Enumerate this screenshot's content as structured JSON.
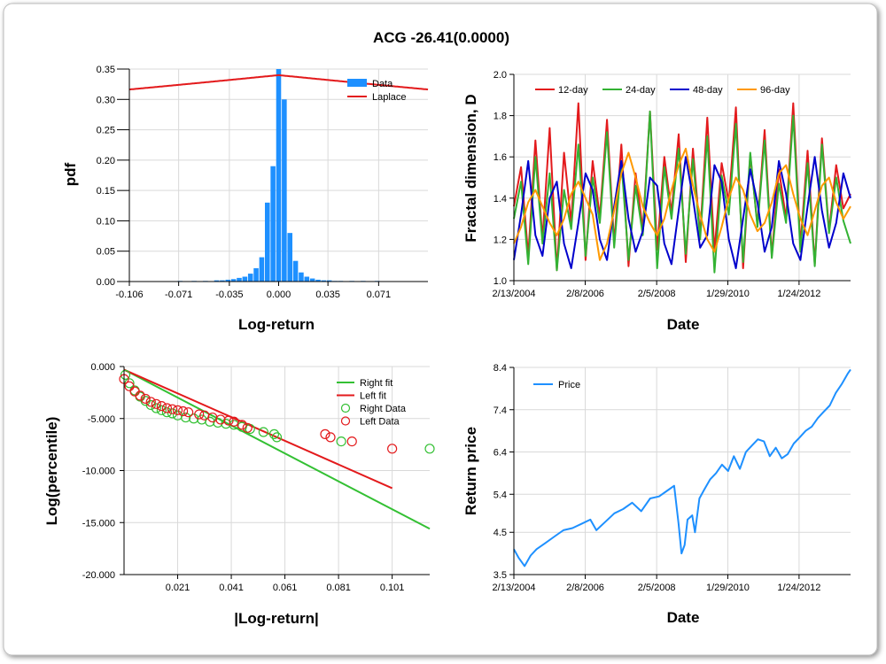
{
  "title": "ACG -26.41(0.0000)",
  "chart_data": [
    {
      "type": "bar",
      "subtype": "histogram with fitted curve",
      "xlabel": "Log-return",
      "ylabel": "pdf",
      "xlim": [
        -0.106,
        0.106
      ],
      "ylim": [
        0,
        0.35
      ],
      "x_ticks": [
        "-0.106",
        "-0.071",
        "-0.035",
        "0.000",
        "0.035",
        "0.071"
      ],
      "x_tick_values": [
        -0.106,
        -0.071,
        -0.035,
        0.0,
        0.035,
        0.071
      ],
      "y_ticks": [
        "0.00",
        "0.05",
        "0.10",
        "0.15",
        "0.20",
        "0.25",
        "0.30",
        "0.35"
      ],
      "y_tick_values": [
        0,
        0.05,
        0.1,
        0.15,
        0.2,
        0.25,
        0.3,
        0.35
      ],
      "legend": [
        "Data",
        "Laplace"
      ],
      "legend_position": "top-right",
      "colors": {
        "Data": "#1e90ff",
        "Laplace": "#e31a1c"
      },
      "bins": {
        "centers": [
          -0.07,
          -0.06,
          -0.052,
          -0.044,
          -0.04,
          -0.036,
          -0.032,
          -0.028,
          -0.024,
          -0.02,
          -0.016,
          -0.012,
          -0.008,
          -0.004,
          0.0,
          0.004,
          0.008,
          0.012,
          0.016,
          0.02,
          0.024,
          0.028,
          0.032,
          0.036,
          0.04,
          0.044,
          0.052,
          0.06,
          0.07
        ],
        "values": [
          0.001,
          0.001,
          0.001,
          0.002,
          0.002,
          0.003,
          0.004,
          0.006,
          0.008,
          0.013,
          0.022,
          0.04,
          0.13,
          0.19,
          0.35,
          0.3,
          0.08,
          0.034,
          0.015,
          0.008,
          0.005,
          0.003,
          0.002,
          0.002,
          0.001,
          0.001,
          0.001,
          0.001,
          0.001
        ],
        "width": 0.004
      },
      "laplace": {
        "location": 0.0,
        "peak": 0.34
      }
    },
    {
      "type": "line",
      "xlabel": "Date",
      "ylabel": "Fractal dimension, D",
      "ylim": [
        1.0,
        2.0
      ],
      "x_ticks": [
        "2/13/2004",
        "2/8/2006",
        "2/5/2008",
        "1/29/2010",
        "1/24/2012"
      ],
      "x_tick_values": [
        "2004-02-13",
        "2006-02-08",
        "2008-02-05",
        "2010-01-29",
        "2012-01-24"
      ],
      "x_range": [
        "2004-02-13",
        "2013-07-01"
      ],
      "y_ticks": [
        "1.0",
        "1.2",
        "1.4",
        "1.6",
        "1.8",
        "2.0"
      ],
      "y_tick_values": [
        1.0,
        1.2,
        1.4,
        1.6,
        1.8,
        2.0
      ],
      "legend_position": "top-left",
      "series": [
        {
          "name": "12-day",
          "color": "#e31a1c",
          "values": [
            1.36,
            1.55,
            1.12,
            1.68,
            1.2,
            1.74,
            1.05,
            1.62,
            1.28,
            1.86,
            1.1,
            1.58,
            1.31,
            1.78,
            1.18,
            1.66,
            1.07,
            1.52,
            1.25,
            1.82,
            1.15,
            1.6,
            1.33,
            1.71,
            1.09,
            1.64,
            1.22,
            1.79,
            1.14,
            1.57,
            1.38,
            1.84,
            1.06,
            1.61,
            1.27,
            1.73,
            1.12,
            1.54,
            1.3,
            1.86,
            1.17,
            1.63,
            1.08,
            1.69,
            1.24,
            1.56,
            1.35,
            1.42
          ]
        },
        {
          "name": "24-day",
          "color": "#33b233",
          "values": [
            1.3,
            1.48,
            1.08,
            1.6,
            1.18,
            1.52,
            1.05,
            1.44,
            1.25,
            1.66,
            1.12,
            1.5,
            1.28,
            1.72,
            1.16,
            1.58,
            1.1,
            1.46,
            1.22,
            1.82,
            1.06,
            1.55,
            1.3,
            1.64,
            1.13,
            1.59,
            1.2,
            1.7,
            1.04,
            1.51,
            1.32,
            1.76,
            1.09,
            1.62,
            1.26,
            1.68,
            1.11,
            1.47,
            1.28,
            1.8,
            1.14,
            1.57,
            1.07,
            1.66,
            1.23,
            1.5,
            1.29,
            1.18
          ]
        },
        {
          "name": "48-day",
          "color": "#0000cc",
          "values": [
            1.1,
            1.32,
            1.58,
            1.22,
            1.12,
            1.4,
            1.48,
            1.18,
            1.06,
            1.28,
            1.52,
            1.44,
            1.2,
            1.1,
            1.36,
            1.58,
            1.3,
            1.14,
            1.24,
            1.5,
            1.46,
            1.18,
            1.08,
            1.34,
            1.6,
            1.4,
            1.16,
            1.22,
            1.56,
            1.48,
            1.2,
            1.06,
            1.3,
            1.54,
            1.38,
            1.14,
            1.26,
            1.58,
            1.42,
            1.18,
            1.1,
            1.36,
            1.6,
            1.34,
            1.16,
            1.28,
            1.52,
            1.4
          ]
        },
        {
          "name": "96-day",
          "color": "#ff9900",
          "values": [
            1.18,
            1.26,
            1.38,
            1.44,
            1.36,
            1.28,
            1.22,
            1.3,
            1.42,
            1.48,
            1.4,
            1.32,
            1.1,
            1.18,
            1.34,
            1.52,
            1.62,
            1.5,
            1.36,
            1.28,
            1.22,
            1.3,
            1.44,
            1.56,
            1.64,
            1.46,
            1.32,
            1.2,
            1.14,
            1.26,
            1.4,
            1.5,
            1.44,
            1.32,
            1.24,
            1.28,
            1.38,
            1.52,
            1.56,
            1.42,
            1.3,
            1.22,
            1.34,
            1.46,
            1.5,
            1.38,
            1.3,
            1.36
          ]
        }
      ]
    },
    {
      "type": "scatter",
      "xlabel": "|Log-return|",
      "ylabel": "Log(percentile)",
      "xlim": [
        0.001,
        0.115
      ],
      "ylim": [
        -20,
        0
      ],
      "x_ticks": [
        "0.021",
        "0.041",
        "0.061",
        "0.081",
        "0.101"
      ],
      "x_tick_values": [
        0.021,
        0.041,
        0.061,
        0.081,
        0.101
      ],
      "y_ticks": [
        "0.000",
        "-5.000",
        "-10.000",
        "-15.000",
        "-20.000"
      ],
      "y_tick_values": [
        0,
        -5,
        -10,
        -15,
        -20
      ],
      "legend": [
        "Right fit",
        "Left fit",
        "Right Data",
        "Left Data"
      ],
      "legend_position": "top-right",
      "series": [
        {
          "name": "Right fit",
          "kind": "line",
          "color": "#33c033",
          "x": [
            0.001,
            0.115
          ],
          "y": [
            -0.3,
            -15.6
          ]
        },
        {
          "name": "Left fit",
          "kind": "line",
          "color": "#e31a1c",
          "x": [
            0.001,
            0.101
          ],
          "y": [
            -0.3,
            -11.7
          ]
        },
        {
          "name": "Right Data",
          "kind": "points",
          "color": "#33c033",
          "x": [
            0.0015,
            0.003,
            0.005,
            0.007,
            0.009,
            0.011,
            0.013,
            0.015,
            0.017,
            0.019,
            0.021,
            0.024,
            0.027,
            0.03,
            0.033,
            0.036,
            0.039,
            0.042,
            0.045,
            0.048,
            0.053,
            0.057,
            0.058,
            0.082,
            0.115
          ],
          "y": [
            -0.8,
            -1.6,
            -2.3,
            -2.9,
            -3.3,
            -3.7,
            -4.0,
            -4.2,
            -4.4,
            -4.5,
            -4.7,
            -4.9,
            -5.0,
            -5.1,
            -5.3,
            -5.4,
            -5.5,
            -5.6,
            -5.8,
            -6.0,
            -6.3,
            -6.5,
            -6.8,
            -7.2,
            -7.9
          ]
        },
        {
          "name": "Left Data",
          "kind": "points",
          "color": "#e31a1c",
          "x": [
            0.001,
            0.003,
            0.005,
            0.007,
            0.009,
            0.011,
            0.013,
            0.015,
            0.017,
            0.019,
            0.021,
            0.023,
            0.025,
            0.029,
            0.031,
            0.034,
            0.037,
            0.04,
            0.042,
            0.045,
            0.047,
            0.076,
            0.078,
            0.086,
            0.101
          ],
          "y": [
            -1.2,
            -1.9,
            -2.4,
            -2.8,
            -3.1,
            -3.4,
            -3.6,
            -3.8,
            -4.0,
            -4.1,
            -4.2,
            -4.3,
            -4.4,
            -4.6,
            -4.7,
            -4.9,
            -5.1,
            -5.2,
            -5.3,
            -5.6,
            -5.9,
            -6.5,
            -6.8,
            -7.2,
            -7.9
          ]
        }
      ]
    },
    {
      "type": "line",
      "xlabel": "Date",
      "ylabel": "Return price",
      "ylim": [
        3.5,
        8.4
      ],
      "x_ticks": [
        "2/13/2004",
        "2/8/2006",
        "2/5/2008",
        "1/29/2010",
        "1/24/2012"
      ],
      "x_tick_values": [
        "2004-02-13",
        "2006-02-08",
        "2008-02-05",
        "2010-01-29",
        "2012-01-24"
      ],
      "x_range": [
        "2004-02-13",
        "2013-07-01"
      ],
      "y_ticks": [
        "3.5",
        "4.5",
        "5.4",
        "6.4",
        "7.4",
        "8.4"
      ],
      "y_tick_values": [
        3.5,
        4.5,
        5.4,
        6.4,
        7.4,
        8.4
      ],
      "legend_position": "top-left",
      "series": [
        {
          "name": "Price",
          "color": "#1e90ff",
          "x": [
            "2004-02-13",
            "2004-04-01",
            "2004-06-01",
            "2004-08-01",
            "2004-10-01",
            "2005-01-01",
            "2005-04-01",
            "2005-07-01",
            "2005-10-01",
            "2006-01-01",
            "2006-04-01",
            "2006-06-01",
            "2006-09-01",
            "2006-12-01",
            "2007-03-01",
            "2007-06-01",
            "2007-09-01",
            "2007-12-01",
            "2008-03-01",
            "2008-06-01",
            "2008-08-01",
            "2008-09-15",
            "2008-10-15",
            "2008-11-15",
            "2008-12-15",
            "2009-02-01",
            "2009-03-01",
            "2009-04-15",
            "2009-06-01",
            "2009-08-01",
            "2009-10-01",
            "2009-12-01",
            "2010-02-01",
            "2010-04-01",
            "2010-06-01",
            "2010-08-01",
            "2010-10-01",
            "2010-12-01",
            "2011-02-01",
            "2011-04-01",
            "2011-06-01",
            "2011-08-01",
            "2011-10-01",
            "2011-12-01",
            "2012-02-01",
            "2012-04-01",
            "2012-06-01",
            "2012-08-01",
            "2012-10-01",
            "2012-12-01",
            "2013-02-01",
            "2013-04-01",
            "2013-06-01",
            "2013-07-01"
          ],
          "y": [
            4.1,
            3.9,
            3.7,
            3.95,
            4.1,
            4.25,
            4.4,
            4.55,
            4.6,
            4.7,
            4.8,
            4.55,
            4.75,
            4.95,
            5.05,
            5.2,
            5.0,
            5.3,
            5.35,
            5.5,
            5.6,
            4.7,
            4.0,
            4.2,
            4.8,
            4.9,
            4.5,
            5.3,
            5.5,
            5.75,
            5.9,
            6.1,
            5.95,
            6.3,
            6.0,
            6.4,
            6.55,
            6.7,
            6.65,
            6.3,
            6.5,
            6.25,
            6.35,
            6.6,
            6.75,
            6.9,
            7.0,
            7.2,
            7.35,
            7.5,
            7.8,
            8.0,
            8.25,
            8.35
          ]
        }
      ]
    }
  ]
}
